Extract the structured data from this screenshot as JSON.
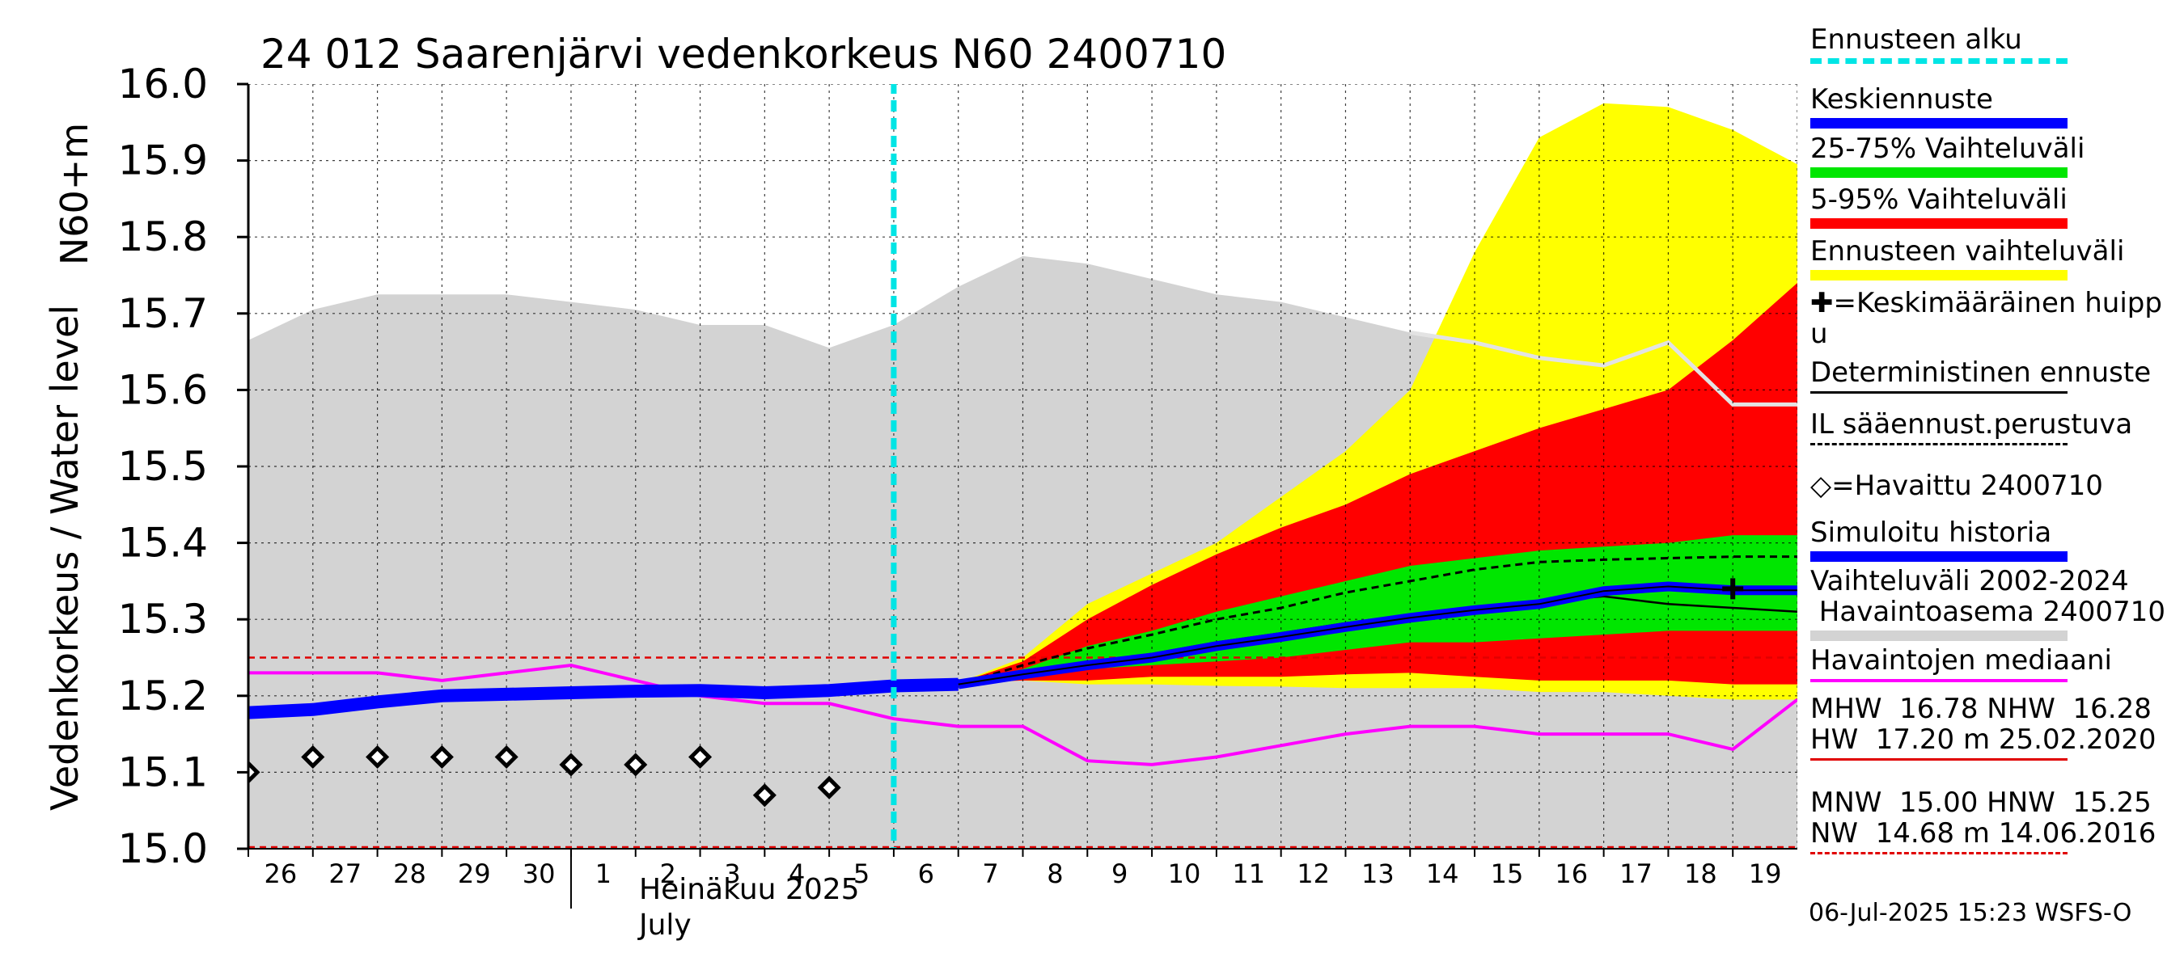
{
  "chart_data": {
    "type": "area",
    "title": "24 012 Saarenjärvi vedenkorkeus N60 2400710",
    "ylabel_line1": "N60+m",
    "ylabel_line2": "Vedenkorkeus / Water level",
    "ylim": [
      15.0,
      16.0
    ],
    "yticks": [
      "15.0",
      "15.1",
      "15.2",
      "15.3",
      "15.4",
      "15.5",
      "15.6",
      "15.7",
      "15.8",
      "15.9",
      "16.0"
    ],
    "xlim": [
      0,
      24
    ],
    "x_day_ticks": [
      {
        "label": "26",
        "day": 0
      },
      {
        "label": "27",
        "day": 1
      },
      {
        "label": "28",
        "day": 2
      },
      {
        "label": "29",
        "day": 3
      },
      {
        "label": "30",
        "day": 4
      },
      {
        "label": "1",
        "day": 5
      },
      {
        "label": "2",
        "day": 6
      },
      {
        "label": "3",
        "day": 7
      },
      {
        "label": "4",
        "day": 8
      },
      {
        "label": "5",
        "day": 9
      },
      {
        "label": "6",
        "day": 10
      },
      {
        "label": "7",
        "day": 11
      },
      {
        "label": "8",
        "day": 12
      },
      {
        "label": "9",
        "day": 13
      },
      {
        "label": "10",
        "day": 14
      },
      {
        "label": "11",
        "day": 15
      },
      {
        "label": "12",
        "day": 16
      },
      {
        "label": "13",
        "day": 17
      },
      {
        "label": "14",
        "day": 18
      },
      {
        "label": "15",
        "day": 19
      },
      {
        "label": "16",
        "day": 20
      },
      {
        "label": "17",
        "day": 21
      },
      {
        "label": "18",
        "day": 22
      },
      {
        "label": "19",
        "day": 23
      }
    ],
    "month_label": "Heinäkuu  2025",
    "month_label_en": "July",
    "month_start_day": 5,
    "forecast_start_day": 10.0,
    "hline_level": 15.25,
    "floor_level": 15.0,
    "history_range": {
      "x": [
        0,
        1,
        2,
        3,
        4,
        5,
        6,
        7,
        8,
        9,
        10,
        11,
        12,
        13,
        14,
        15,
        16,
        17,
        18,
        19,
        20,
        21,
        22,
        23,
        24
      ],
      "upper": [
        15.665,
        15.705,
        15.725,
        15.725,
        15.725,
        15.715,
        15.705,
        15.685,
        15.685,
        15.655,
        15.685,
        15.735,
        15.775,
        15.765,
        15.745,
        15.725,
        15.715,
        15.695,
        15.675,
        15.665,
        15.645,
        15.635,
        15.665,
        15.585,
        15.585
      ],
      "lower": [
        15.0,
        15.0,
        15.0,
        15.0,
        15.0,
        15.0,
        15.0,
        15.0,
        15.0,
        15.0,
        15.0,
        15.0,
        15.0,
        15.0,
        15.0,
        15.0,
        15.0,
        15.0,
        15.0,
        15.0,
        15.0,
        15.0,
        15.0,
        15.0,
        15.0
      ]
    },
    "history_max_line": {
      "x": [
        18,
        19,
        20,
        21,
        22,
        23,
        24
      ],
      "y": [
        15.675,
        15.662,
        15.642,
        15.632,
        15.662,
        15.581,
        15.581
      ]
    },
    "forecast_x": [
      11,
      12,
      13,
      14,
      15,
      16,
      17,
      18,
      19,
      20,
      21,
      22,
      23,
      24
    ],
    "band_ennuste": {
      "upper": [
        15.217,
        15.25,
        15.32,
        15.36,
        15.4,
        15.46,
        15.52,
        15.6,
        15.78,
        15.93,
        15.975,
        15.97,
        15.94,
        15.895
      ],
      "lower": [
        15.217,
        15.22,
        15.215,
        15.215,
        15.213,
        15.212,
        15.21,
        15.21,
        15.21,
        15.205,
        15.205,
        15.2,
        15.195,
        15.195
      ]
    },
    "band_5_95": {
      "upper": [
        15.217,
        15.245,
        15.3,
        15.345,
        15.385,
        15.42,
        15.45,
        15.49,
        15.52,
        15.55,
        15.575,
        15.6,
        15.665,
        15.74
      ],
      "lower": [
        15.217,
        15.22,
        15.22,
        15.225,
        15.225,
        15.225,
        15.228,
        15.23,
        15.225,
        15.22,
        15.22,
        15.22,
        15.215,
        15.215
      ]
    },
    "band_25_75": {
      "upper": [
        15.217,
        15.235,
        15.265,
        15.285,
        15.31,
        15.33,
        15.35,
        15.37,
        15.38,
        15.39,
        15.395,
        15.4,
        15.41,
        15.41
      ],
      "lower": [
        15.217,
        15.225,
        15.235,
        15.24,
        15.245,
        15.25,
        15.26,
        15.27,
        15.27,
        15.275,
        15.28,
        15.285,
        15.285,
        15.285
      ]
    },
    "il_forecast_dashed": {
      "x": [
        11,
        12,
        13,
        14,
        15,
        16,
        17,
        18,
        19,
        20,
        21,
        22,
        23,
        24
      ],
      "y": [
        15.215,
        15.24,
        15.262,
        15.28,
        15.3,
        15.315,
        15.335,
        15.35,
        15.365,
        15.375,
        15.378,
        15.38,
        15.382,
        15.382
      ]
    },
    "deterministic": {
      "x": [
        11,
        12,
        13,
        14,
        15,
        16,
        17,
        18,
        19,
        20,
        21,
        22,
        23,
        24
      ],
      "y": [
        15.215,
        15.232,
        15.243,
        15.255,
        15.27,
        15.282,
        15.295,
        15.305,
        15.315,
        15.323,
        15.33,
        15.32,
        15.315,
        15.31
      ]
    },
    "mean_forecast": {
      "x": [
        11,
        12,
        13,
        14,
        15,
        16,
        17,
        18,
        19,
        20,
        21,
        22,
        23,
        24
      ],
      "y": [
        15.215,
        15.228,
        15.24,
        15.25,
        15.265,
        15.277,
        15.29,
        15.302,
        15.312,
        15.32,
        15.337,
        15.343,
        15.338,
        15.338
      ]
    },
    "simulated_history": {
      "x": [
        0,
        1,
        2,
        3,
        4,
        5,
        6,
        7,
        8,
        9,
        10,
        11
      ],
      "y": [
        15.178,
        15.182,
        15.192,
        15.2,
        15.202,
        15.204,
        15.206,
        15.207,
        15.204,
        15.207,
        15.213,
        15.215
      ]
    },
    "median_line": {
      "x": [
        0,
        1,
        2,
        3,
        4,
        5,
        6,
        7,
        8,
        9,
        10,
        11,
        12,
        13,
        14,
        15,
        16,
        17,
        18,
        19,
        20,
        21,
        22,
        23,
        24
      ],
      "y": [
        15.23,
        15.23,
        15.23,
        15.22,
        15.23,
        15.24,
        15.22,
        15.2,
        15.19,
        15.19,
        15.17,
        15.16,
        15.16,
        15.115,
        15.11,
        15.12,
        15.135,
        15.15,
        15.16,
        15.16,
        15.15,
        15.15,
        15.15,
        15.13,
        15.195
      ]
    },
    "observed": {
      "x": [
        0,
        1,
        2,
        3,
        4,
        5,
        6,
        7,
        8,
        9
      ],
      "y": [
        15.1,
        15.12,
        15.12,
        15.12,
        15.12,
        15.11,
        15.11,
        15.12,
        15.07,
        15.08
      ]
    },
    "mean_peak": {
      "x": 23,
      "y": 15.34
    },
    "colors": {
      "history_band": "#d3d3d3",
      "history_max": "#e3e3e3",
      "ennuste_band": "#ffff00",
      "band_5_95": "#ff0000",
      "band_25_75": "#00e600",
      "mean": "#0000ff",
      "median": "#ff00ff",
      "forecast_start": "#00e5e5",
      "hline": "#e00000",
      "grid": "#000000"
    }
  },
  "legend": [
    {
      "label": "Ennusteen alku",
      "swatch": "dashed-cyan"
    },
    {
      "label": "Keskiennuste",
      "swatch": "blue"
    },
    {
      "label": "25-75% Vaihteluväli",
      "swatch": "green"
    },
    {
      "label": "5-95% Vaihteluväli",
      "swatch": "red"
    },
    {
      "label": "Ennusteen vaihteluväli",
      "swatch": "yellow"
    },
    {
      "label": "✚=Keskimääräinen huipp\nu",
      "swatch": "none"
    },
    {
      "label": "Deterministinen ennuste",
      "swatch": "thin-black"
    },
    {
      "label": "IL sääennust.perustuva",
      "swatch": "dashed-black"
    },
    {
      "label": "◇=Havaittu 2400710",
      "swatch": "none"
    },
    {
      "label": "Simuloitu historia",
      "swatch": "blue"
    },
    {
      "label": "Vaihteluväli 2002-2024\n Havaintoasema 2400710",
      "swatch": "gray"
    },
    {
      "label": "Havaintojen mediaani",
      "swatch": "magenta"
    },
    {
      "label": "MHW  16.78 NHW  16.28\nHW  17.20 m 25.02.2020",
      "swatch": "thin-red"
    },
    {
      "label": "MNW  15.00 HNW  15.25\nNW  14.68 m 14.06.2016",
      "swatch": "dashed-red"
    }
  ],
  "footer": "06-Jul-2025 15:23 WSFS-O"
}
